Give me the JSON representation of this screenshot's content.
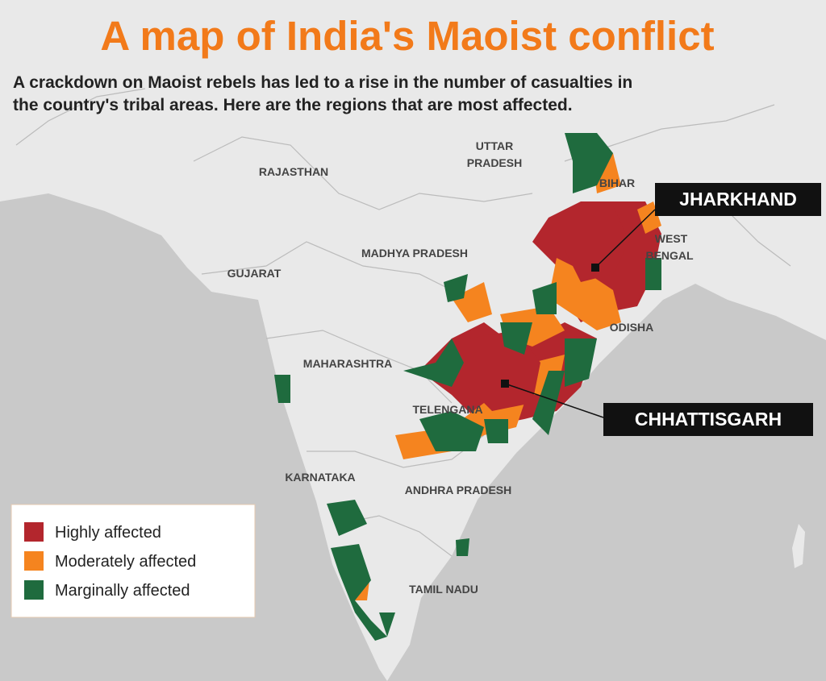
{
  "header": {
    "title": "A map of India's Maoist conflict",
    "subtitle": [
      "A crackdown on Maoist rebels has led to a rise in the number of casualties in",
      "the country's tribal areas. Here are the regions that are most affected."
    ]
  },
  "map": {
    "regions": [
      [
        "UTTAR",
        "PRADESH"
      ],
      "BIHAR",
      "RAJASTHAN",
      [
        "WEST",
        "BENGAL"
      ],
      "MADHYA PRADESH",
      "GUJARAT",
      "ODISHA",
      "MAHARASHTRA",
      "TELENGANA",
      "KARNATAKA",
      "ANDHRA PRADESH",
      "TAMIL NADU"
    ],
    "callouts": [
      "JHARKHAND",
      "CHHATTISGARH"
    ]
  },
  "legend": {
    "items": [
      {
        "label": "Highly affected",
        "color": "#b3262d"
      },
      {
        "label": "Moderately affected",
        "color": "#f5841f"
      },
      {
        "label": "Marginally affected",
        "color": "#1f6b3e"
      }
    ]
  }
}
